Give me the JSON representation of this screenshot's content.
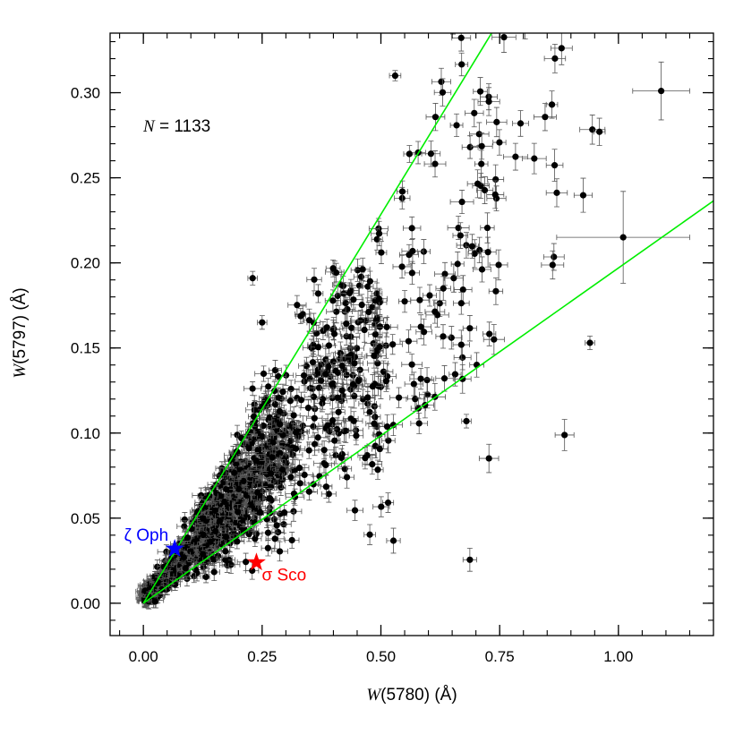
{
  "chart_data": {
    "type": "scatter",
    "xlabel_var": "W",
    "xlabel_rest": "(5780) (Å)",
    "ylabel_var": "W",
    "ylabel_rest": "(5797) (Å)",
    "xlim": [
      -0.07,
      1.2
    ],
    "ylim": [
      -0.019,
      0.335
    ],
    "xticks": [
      0.0,
      0.25,
      0.5,
      0.75,
      1.0
    ],
    "xtick_labels": [
      "0.00",
      "0.25",
      "0.50",
      "0.75",
      "1.00"
    ],
    "yticks": [
      0.0,
      0.05,
      0.1,
      0.15,
      0.2,
      0.25,
      0.3
    ],
    "ytick_labels": [
      "0.00",
      "0.05",
      "0.10",
      "0.15",
      "0.20",
      "0.25",
      "0.30"
    ],
    "n_label_var": "N",
    "n_label_rest": " = 1133",
    "grid": false,
    "lines": [
      {
        "color": "#00ee00",
        "slope": 0.457
      },
      {
        "color": "#00ee00",
        "slope": 0.197
      }
    ],
    "stars": [
      {
        "label": "ζ Oph",
        "x": 0.066,
        "y": 0.032,
        "color": "#0000ff"
      },
      {
        "label": "σ Sco",
        "x": 0.238,
        "y": 0.024,
        "color": "#ff0000"
      }
    ],
    "notable_points": [
      {
        "x": 1.09,
        "y": 0.301,
        "xerr": 0.06,
        "yerr": 0.017
      },
      {
        "x": 1.01,
        "y": 0.215,
        "xerr": 0.14,
        "yerr": 0.027
      },
      {
        "x": 0.53,
        "y": 0.31,
        "xerr": 0.012,
        "yerr": 0.003
      },
      {
        "x": 0.94,
        "y": 0.153,
        "xerr": 0.01,
        "yerr": 0.004
      },
      {
        "x": 0.68,
        "y": 0.107,
        "xerr": 0.01,
        "yerr": 0.004
      },
      {
        "x": 0.23,
        "y": 0.191,
        "xerr": 0.01,
        "yerr": 0.004
      },
      {
        "x": 0.25,
        "y": 0.165,
        "xerr": 0.01,
        "yerr": 0.004
      },
      {
        "x": 0.86,
        "y": 0.293,
        "xerr": 0.012,
        "yerr": 0.008
      },
      {
        "x": 0.96,
        "y": 0.277,
        "xerr": 0.012,
        "yerr": 0.008
      },
      {
        "x": 0.56,
        "y": 0.264,
        "xerr": 0.012,
        "yerr": 0.005
      }
    ]
  }
}
